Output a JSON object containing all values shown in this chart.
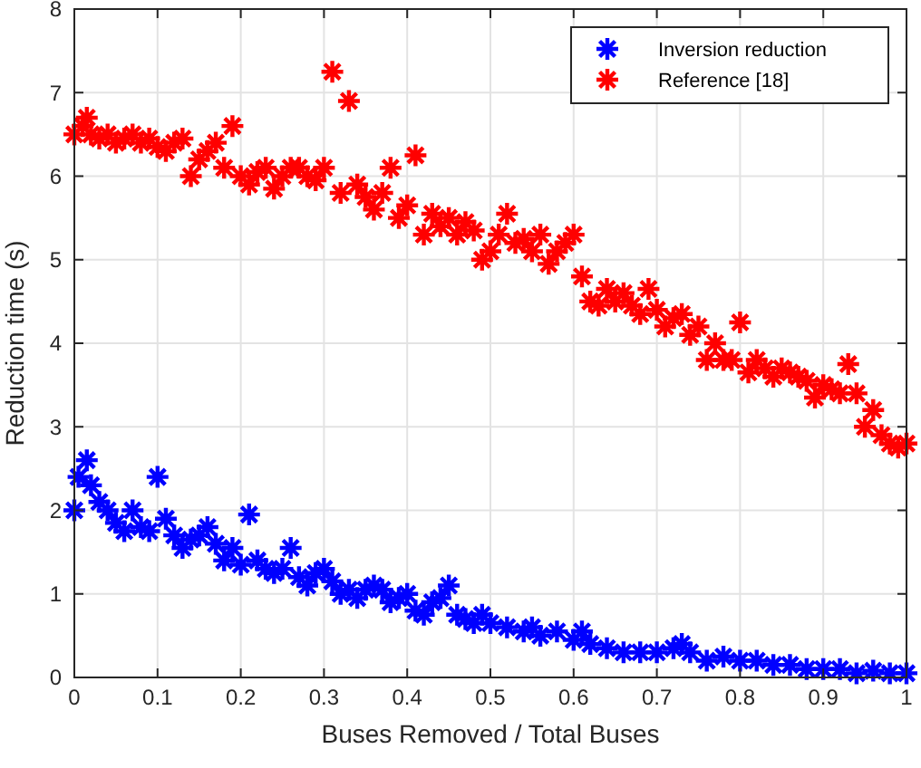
{
  "chart_data": {
    "type": "scatter",
    "xlabel": "Buses Removed / Total Buses",
    "ylabel": "Reduction time (s)",
    "xlim": [
      0,
      1
    ],
    "ylim": [
      0,
      8
    ],
    "xticks": [
      0,
      0.1,
      0.2,
      0.3,
      0.4,
      0.5,
      0.6,
      0.7,
      0.8,
      0.9,
      1
    ],
    "yticks": [
      0,
      1,
      2,
      3,
      4,
      5,
      6,
      7,
      8
    ],
    "grid": true,
    "legend": "top right",
    "marker": "cross",
    "series": [
      {
        "name": "Inversion reduction",
        "color": "#0000ff",
        "x": [
          0,
          0.005,
          0.015,
          0.02,
          0.03,
          0.04,
          0.05,
          0.06,
          0.07,
          0.08,
          0.09,
          0.1,
          0.11,
          0.12,
          0.13,
          0.14,
          0.15,
          0.16,
          0.17,
          0.18,
          0.19,
          0.2,
          0.21,
          0.22,
          0.23,
          0.24,
          0.25,
          0.26,
          0.27,
          0.28,
          0.29,
          0.3,
          0.31,
          0.32,
          0.33,
          0.34,
          0.35,
          0.36,
          0.37,
          0.38,
          0.39,
          0.4,
          0.41,
          0.42,
          0.43,
          0.44,
          0.45,
          0.46,
          0.47,
          0.48,
          0.49,
          0.5,
          0.52,
          0.54,
          0.55,
          0.56,
          0.58,
          0.6,
          0.61,
          0.62,
          0.64,
          0.66,
          0.68,
          0.7,
          0.72,
          0.73,
          0.74,
          0.76,
          0.78,
          0.8,
          0.82,
          0.84,
          0.86,
          0.88,
          0.9,
          0.92,
          0.94,
          0.96,
          0.98,
          1
        ],
        "values": [
          2.0,
          2.4,
          2.6,
          2.3,
          2.1,
          2.0,
          1.85,
          1.75,
          2.0,
          1.8,
          1.75,
          2.4,
          1.9,
          1.7,
          1.55,
          1.65,
          1.7,
          1.8,
          1.6,
          1.4,
          1.55,
          1.35,
          1.95,
          1.4,
          1.3,
          1.25,
          1.3,
          1.55,
          1.2,
          1.1,
          1.25,
          1.3,
          1.15,
          1.0,
          1.05,
          0.95,
          1.05,
          1.1,
          1.05,
          0.9,
          0.95,
          1.0,
          0.8,
          0.75,
          0.9,
          0.95,
          1.1,
          0.75,
          0.7,
          0.65,
          0.75,
          0.65,
          0.6,
          0.55,
          0.6,
          0.5,
          0.55,
          0.45,
          0.55,
          0.4,
          0.35,
          0.3,
          0.3,
          0.3,
          0.35,
          0.4,
          0.3,
          0.2,
          0.25,
          0.2,
          0.2,
          0.15,
          0.15,
          0.1,
          0.1,
          0.1,
          0.05,
          0.08,
          0.05,
          0.05
        ]
      },
      {
        "name": "Reference [18]",
        "color": "#ff0000",
        "x": [
          0,
          0.01,
          0.015,
          0.02,
          0.03,
          0.04,
          0.05,
          0.06,
          0.07,
          0.08,
          0.09,
          0.1,
          0.11,
          0.12,
          0.13,
          0.14,
          0.15,
          0.16,
          0.17,
          0.18,
          0.19,
          0.2,
          0.21,
          0.22,
          0.23,
          0.24,
          0.25,
          0.26,
          0.27,
          0.28,
          0.29,
          0.3,
          0.31,
          0.32,
          0.33,
          0.34,
          0.35,
          0.36,
          0.37,
          0.38,
          0.39,
          0.4,
          0.41,
          0.42,
          0.43,
          0.44,
          0.45,
          0.46,
          0.47,
          0.48,
          0.49,
          0.5,
          0.51,
          0.52,
          0.53,
          0.54,
          0.55,
          0.56,
          0.57,
          0.58,
          0.59,
          0.6,
          0.61,
          0.62,
          0.63,
          0.64,
          0.65,
          0.66,
          0.67,
          0.68,
          0.69,
          0.7,
          0.71,
          0.72,
          0.73,
          0.74,
          0.75,
          0.76,
          0.77,
          0.78,
          0.79,
          0.8,
          0.81,
          0.82,
          0.83,
          0.84,
          0.85,
          0.86,
          0.87,
          0.88,
          0.89,
          0.9,
          0.91,
          0.92,
          0.93,
          0.94,
          0.95,
          0.96,
          0.97,
          0.98,
          0.99,
          1
        ],
        "values": [
          6.5,
          6.6,
          6.7,
          6.5,
          6.45,
          6.5,
          6.4,
          6.45,
          6.5,
          6.4,
          6.45,
          6.35,
          6.3,
          6.4,
          6.45,
          6.0,
          6.2,
          6.3,
          6.4,
          6.1,
          6.6,
          6.0,
          5.9,
          6.05,
          6.1,
          5.85,
          6.0,
          6.1,
          6.1,
          6.0,
          5.95,
          6.1,
          7.25,
          5.8,
          6.9,
          5.9,
          5.75,
          5.6,
          5.8,
          6.1,
          5.5,
          5.65,
          6.25,
          5.3,
          5.55,
          5.4,
          5.5,
          5.3,
          5.45,
          5.35,
          5.0,
          5.1,
          5.3,
          5.55,
          5.2,
          5.25,
          5.1,
          5.3,
          4.95,
          5.1,
          5.2,
          5.3,
          4.8,
          4.5,
          4.45,
          4.65,
          4.5,
          4.6,
          4.45,
          4.35,
          4.65,
          4.4,
          4.2,
          4.3,
          4.35,
          4.1,
          4.2,
          3.8,
          4.0,
          3.8,
          3.8,
          4.25,
          3.65,
          3.8,
          3.7,
          3.6,
          3.7,
          3.65,
          3.6,
          3.55,
          3.35,
          3.5,
          3.45,
          3.4,
          3.75,
          3.4,
          3.0,
          3.2,
          2.9,
          2.8,
          2.75,
          2.8
        ]
      }
    ]
  }
}
